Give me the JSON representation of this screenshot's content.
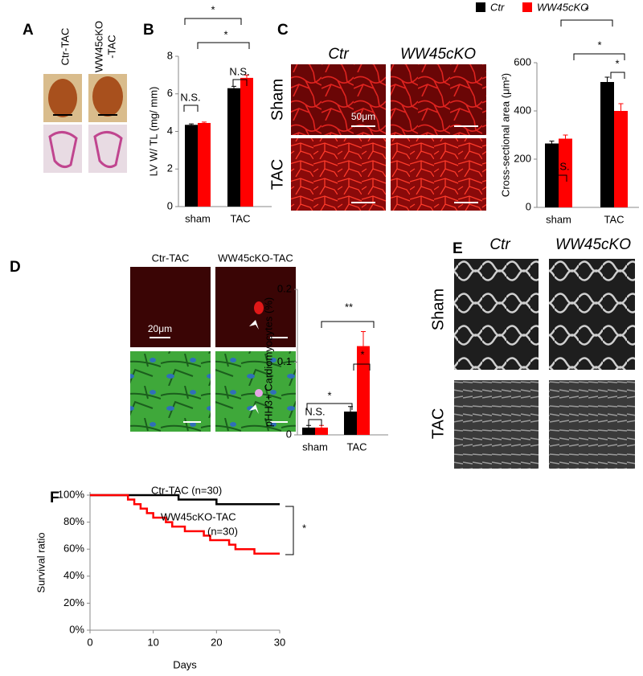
{
  "panels": {
    "a": {
      "letter": "A",
      "col1": "Ctr-TAC",
      "col2a": "WW45cKO",
      "col2b": "-TAC"
    },
    "b": {
      "letter": "B"
    },
    "c": {
      "letter": "C",
      "col1": "Ctr",
      "col2": "WW45cKO",
      "row1": "Sham",
      "row2": "TAC",
      "scale": "50μm"
    },
    "d": {
      "letter": "D",
      "col1": "Ctr-TAC",
      "col2": "WW45cKO-TAC",
      "scale": "20μm"
    },
    "e": {
      "letter": "E",
      "col1": "Ctr",
      "col2": "WW45cKO",
      "row1": "Sham",
      "row2": "TAC"
    },
    "f": {
      "letter": "F"
    }
  },
  "chart_data": [
    {
      "type": "bar",
      "ylabel": "LV W/ TL (mg/ mm)",
      "categories": [
        "sham",
        "TAC"
      ],
      "series": [
        {
          "color": "#000000",
          "values": [
            4.35,
            6.3
          ],
          "errors": [
            0.05,
            0.1
          ]
        },
        {
          "color": "#ff0000",
          "values": [
            4.45,
            6.85
          ],
          "errors": [
            0.05,
            0.15
          ]
        }
      ],
      "ylim": [
        0,
        8
      ],
      "yticks": [
        0,
        2,
        4,
        6,
        8
      ],
      "annotations": [
        "*",
        "*",
        "N.S.",
        "N.S."
      ]
    },
    {
      "type": "bar",
      "ylabel": "Cross-sectional area (μm²)",
      "categories": [
        "sham",
        "TAC"
      ],
      "series": [
        {
          "name": "Ctr",
          "color": "#000000",
          "values": [
            265,
            520
          ],
          "errors": [
            10,
            20
          ]
        },
        {
          "name": "WW45cKO",
          "color": "#ff0000",
          "values": [
            285,
            400
          ],
          "errors": [
            15,
            30
          ]
        }
      ],
      "ylim": [
        0,
        600
      ],
      "yticks": [
        0,
        200,
        400,
        600
      ],
      "annotations": [
        "*",
        "*",
        "*",
        "N.S."
      ]
    },
    {
      "type": "bar",
      "ylabel": "pHH3+ Cardiomyocytes  (%)",
      "categories": [
        "sham",
        "TAC"
      ],
      "series": [
        {
          "color": "#000000",
          "values": [
            0.01,
            0.032
          ],
          "errors": [
            0.003,
            0.007
          ]
        },
        {
          "color": "#ff0000",
          "values": [
            0.01,
            0.122
          ],
          "errors": [
            0.003,
            0.02
          ]
        }
      ],
      "ylim": [
        0,
        0.2
      ],
      "yticks": [
        0,
        0.1,
        0.2
      ],
      "annotations": [
        "**",
        "*",
        "*",
        "N.S."
      ]
    },
    {
      "type": "line",
      "xlabel": "Days",
      "ylabel": "Survival ratio",
      "series": [
        {
          "color": "#000000",
          "x": [
            0,
            14,
            14,
            20,
            20,
            30
          ],
          "values": [
            100,
            100,
            96.7,
            96.7,
            93.3,
            93.3
          ]
        },
        {
          "color": "#ff0000",
          "x": [
            0,
            6,
            6,
            7,
            7,
            8,
            8,
            9,
            9,
            10,
            10,
            12,
            12,
            13,
            13,
            15,
            15,
            18,
            18,
            19,
            19,
            22,
            22,
            23,
            23,
            26,
            26,
            30
          ],
          "values": [
            100,
            100,
            96.7,
            96.7,
            93.3,
            93.3,
            90,
            90,
            86.7,
            86.7,
            83.3,
            83.3,
            80,
            80,
            76.7,
            76.7,
            73.3,
            73.3,
            70,
            70,
            66.7,
            66.7,
            63.3,
            63.3,
            60,
            60,
            56.7,
            56.7
          ]
        }
      ],
      "xlim": [
        0,
        30
      ],
      "xticks": [
        0,
        10,
        20,
        30
      ],
      "ylim": [
        0,
        100
      ],
      "yticks": [
        {
          "value": 0,
          "label": "0%"
        },
        {
          "value": 20,
          "label": "20%"
        },
        {
          "value": 40,
          "label": "40%"
        },
        {
          "value": 60,
          "label": "60%"
        },
        {
          "value": 80,
          "label": "80%"
        },
        {
          "value": 100,
          "label": "100%"
        }
      ],
      "annotations": [
        "Ctr-TAC (n=30)",
        "WW45cKO-TAC",
        "(n=30)",
        "*"
      ]
    }
  ]
}
